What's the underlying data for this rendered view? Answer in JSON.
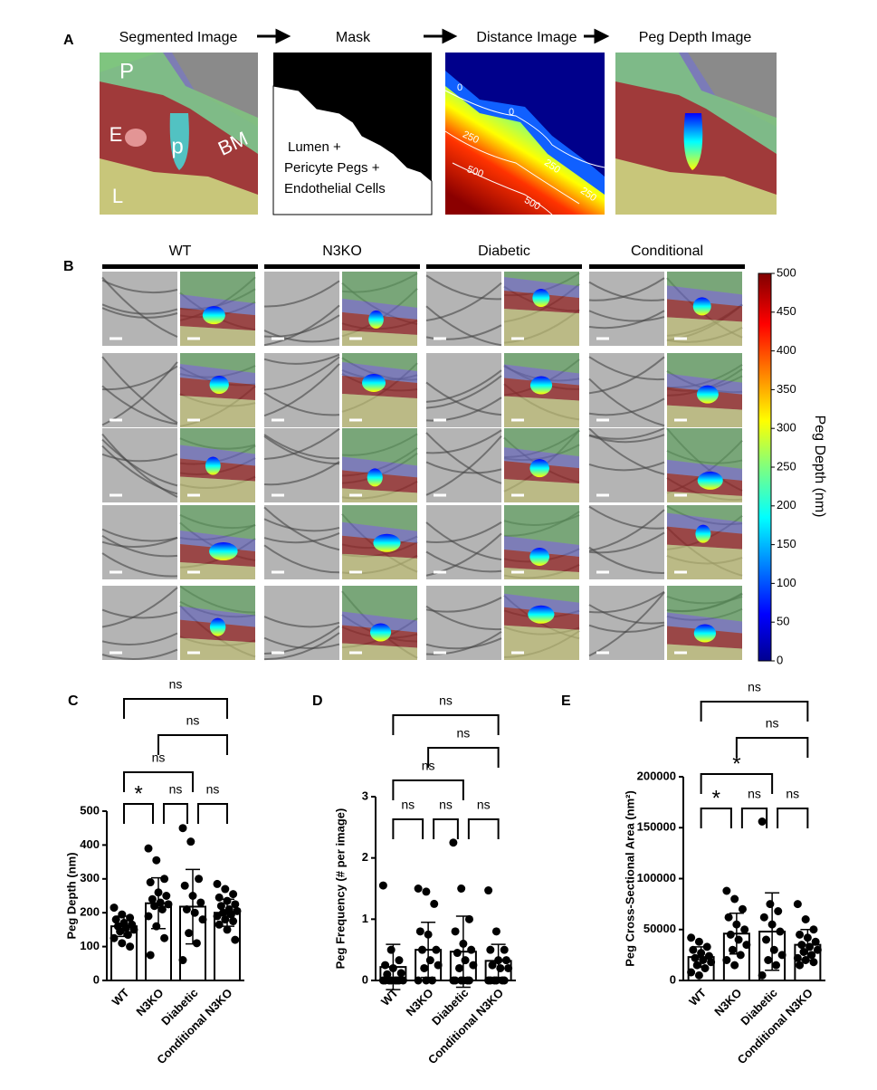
{
  "panels": {
    "A": {
      "label": "A",
      "steps": [
        "Segmented Image",
        "Mask",
        "Distance Image",
        "Peg Depth Image"
      ],
      "segmented_labels": [
        "P",
        "E",
        "p",
        "BM",
        "L"
      ],
      "mask_text": [
        "Lumen +",
        "Pericyte Pegs +",
        "Endothelial Cells"
      ],
      "contour_labels": [
        "0",
        "0",
        "250",
        "250",
        "250",
        "500",
        "500"
      ]
    },
    "B": {
      "label": "B",
      "groups": [
        "WT",
        "N3KO",
        "Diabetic",
        "Conditional"
      ],
      "colorbar": {
        "label": "Peg Depth (nm)",
        "lim": [
          0,
          500
        ],
        "ticks": [
          0,
          50,
          100,
          150,
          200,
          250,
          300,
          350,
          400,
          450,
          500
        ]
      }
    }
  },
  "chart_data": [
    {
      "type": "bar",
      "panel_label": "C",
      "ylabel": "Peg Depth (nm)",
      "categories": [
        "WT",
        "N3KO",
        "Diabetic",
        "Conditional N3KO"
      ],
      "values": [
        160,
        228,
        218,
        200
      ],
      "errors": [
        30,
        75,
        110,
        40
      ],
      "points": [
        [
          215,
          195,
          185,
          180,
          170,
          165,
          160,
          155,
          150,
          145,
          135,
          125,
          110,
          100
        ],
        [
          390,
          355,
          300,
          290,
          260,
          250,
          240,
          230,
          225,
          220,
          210,
          190,
          160,
          125,
          75
        ],
        [
          450,
          410,
          300,
          280,
          250,
          230,
          210,
          200,
          180,
          140,
          110,
          60
        ],
        [
          285,
          270,
          255,
          245,
          235,
          225,
          220,
          210,
          205,
          200,
          195,
          190,
          180,
          175,
          165,
          150,
          120
        ]
      ],
      "annotations": [
        "ns",
        "ns",
        "ns",
        "*",
        "ns",
        "ns"
      ],
      "color": "#ffffff",
      "ylim": [
        0,
        500
      ],
      "yticks": [
        0,
        100,
        200,
        300,
        400,
        500
      ]
    },
    {
      "type": "bar",
      "panel_label": "D",
      "ylabel": "Peg Frequency (# per image)",
      "categories": [
        "WT",
        "N3KO",
        "Diabetic",
        "Conditional N3KO"
      ],
      "values": [
        0.22,
        0.5,
        0.47,
        0.32
      ],
      "errors": [
        0.37,
        0.45,
        0.58,
        0.27
      ],
      "points": [
        [
          1.55,
          0.5,
          0.33,
          0.25,
          0.2,
          0.12,
          0.1,
          0,
          0,
          0,
          0,
          0,
          0,
          0,
          0
        ],
        [
          1.5,
          1.45,
          1.25,
          0.8,
          0.75,
          0.5,
          0.5,
          0.33,
          0.25,
          0.2,
          0,
          0,
          0
        ],
        [
          2.25,
          1.5,
          1,
          0.8,
          0.6,
          0.5,
          0.45,
          0.33,
          0.25,
          0.2,
          0,
          0,
          0,
          0,
          0,
          0
        ],
        [
          1.47,
          0.8,
          0.5,
          0.5,
          0.33,
          0.33,
          0.25,
          0.2,
          0.2,
          0,
          0,
          0,
          0,
          0,
          0
        ]
      ],
      "annotations": [
        "ns",
        "ns",
        "ns",
        "ns",
        "ns",
        "ns"
      ],
      "color": "#ffffff",
      "ylim": [
        0,
        3
      ],
      "yticks": [
        0,
        1,
        2,
        3
      ]
    },
    {
      "type": "bar",
      "panel_label": "E",
      "ylabel": "Peg Cross-Sectional Area (nm²)",
      "categories": [
        "WT",
        "N3KO",
        "Diabetic",
        "Conditional N3KO"
      ],
      "values": [
        23000,
        46000,
        48000,
        35000
      ],
      "errors": [
        10000,
        20000,
        38000,
        15000
      ],
      "points": [
        [
          42000,
          38000,
          33000,
          30000,
          27000,
          24000,
          22000,
          20000,
          18000,
          15000,
          12000,
          8000,
          5000
        ],
        [
          88000,
          80000,
          70000,
          62000,
          55000,
          50000,
          45000,
          40000,
          35000,
          30000,
          25000,
          20000,
          15000
        ],
        [
          156000,
          75000,
          68000,
          62000,
          55000,
          48000,
          40000,
          30000,
          25000,
          20000,
          15000,
          5000
        ],
        [
          75000,
          60000,
          50000,
          45000,
          42000,
          38000,
          35000,
          33000,
          30000,
          28000,
          25000,
          22000,
          20000,
          18000,
          15000
        ]
      ],
      "annotations": [
        "ns",
        "ns",
        "*",
        "*",
        "ns",
        "ns"
      ],
      "color": "#ffffff",
      "ylim": [
        0,
        200000
      ],
      "yticks": [
        0,
        50000,
        100000,
        150000,
        200000
      ]
    }
  ]
}
